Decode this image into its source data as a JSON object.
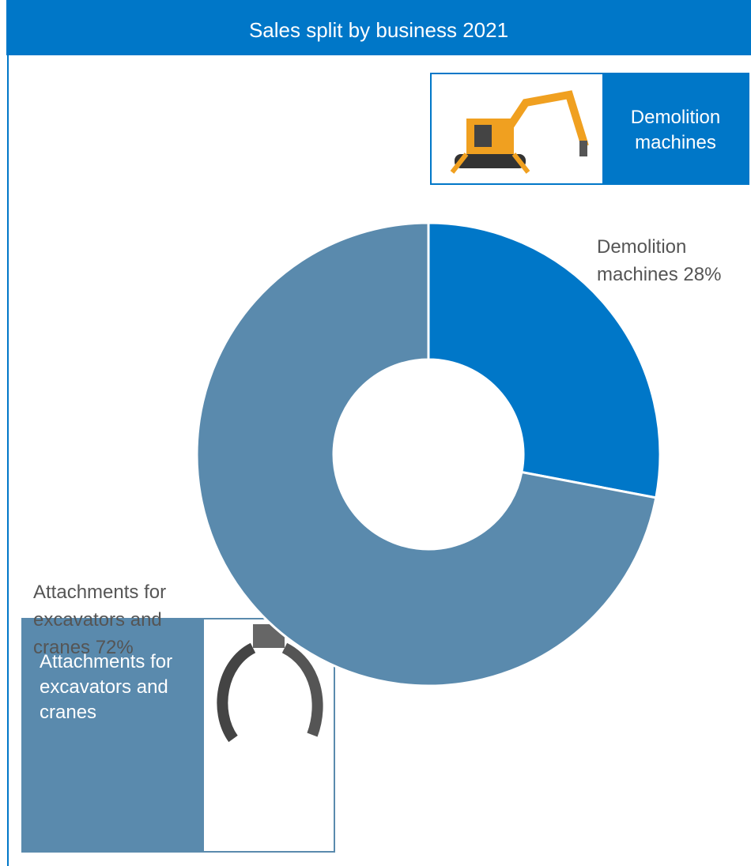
{
  "chart_data": {
    "type": "donut",
    "title": "Sales split by business 2021",
    "categories": [
      "Demolition machines",
      "Attachments for excavators and cranes"
    ],
    "values": [
      28,
      72
    ],
    "value_labels": [
      "Demolition machines 28%",
      "Attachments for excavators and cranes 72%"
    ],
    "colors": [
      "#0077c8",
      "#5a8aad"
    ]
  }
}
